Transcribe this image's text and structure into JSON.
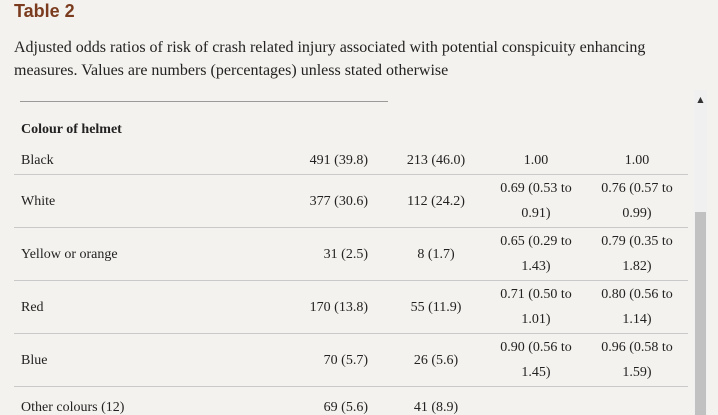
{
  "table": {
    "title": "Table 2",
    "caption": "Adjusted odds ratios of risk of crash related injury associated with potential conspicuity enhancing measures. Values are numbers (percentages) unless stated otherwise",
    "section_header": "Colour of helmet",
    "rows": [
      {
        "label": "Black",
        "cases": "491 (39.8)",
        "controls": "213 (46.0)",
        "or1": "1.00",
        "or2": "1.00"
      },
      {
        "label": "White",
        "cases": "377 (30.6)",
        "controls": "112 (24.2)",
        "or1": "0.69 (0.53 to 0.91)",
        "or2": "0.76 (0.57 to 0.99)"
      },
      {
        "label": "Yellow or orange",
        "cases": "31 (2.5)",
        "controls": "8 (1.7)",
        "or1": "0.65 (0.29 to 1.43)",
        "or2": "0.79 (0.35 to 1.82)"
      },
      {
        "label": "Red",
        "cases": "170 (13.8)",
        "controls": "55 (11.9)",
        "or1": "0.71 (0.50 to 1.01)",
        "or2": "0.80 (0.56 to 1.14)"
      },
      {
        "label": "Blue",
        "cases": "70 (5.7)",
        "controls": "26 (5.6)",
        "or1": "0.90 (0.56 to 1.45)",
        "or2": "0.96 (0.58 to 1.59)"
      },
      {
        "label": "Other colours (12)",
        "cases": "69 (5.6)",
        "controls": "41 (8.9)",
        "or1": "",
        "or2": ""
      }
    ]
  },
  "scrollbar": {
    "up_arrow": "▲"
  }
}
